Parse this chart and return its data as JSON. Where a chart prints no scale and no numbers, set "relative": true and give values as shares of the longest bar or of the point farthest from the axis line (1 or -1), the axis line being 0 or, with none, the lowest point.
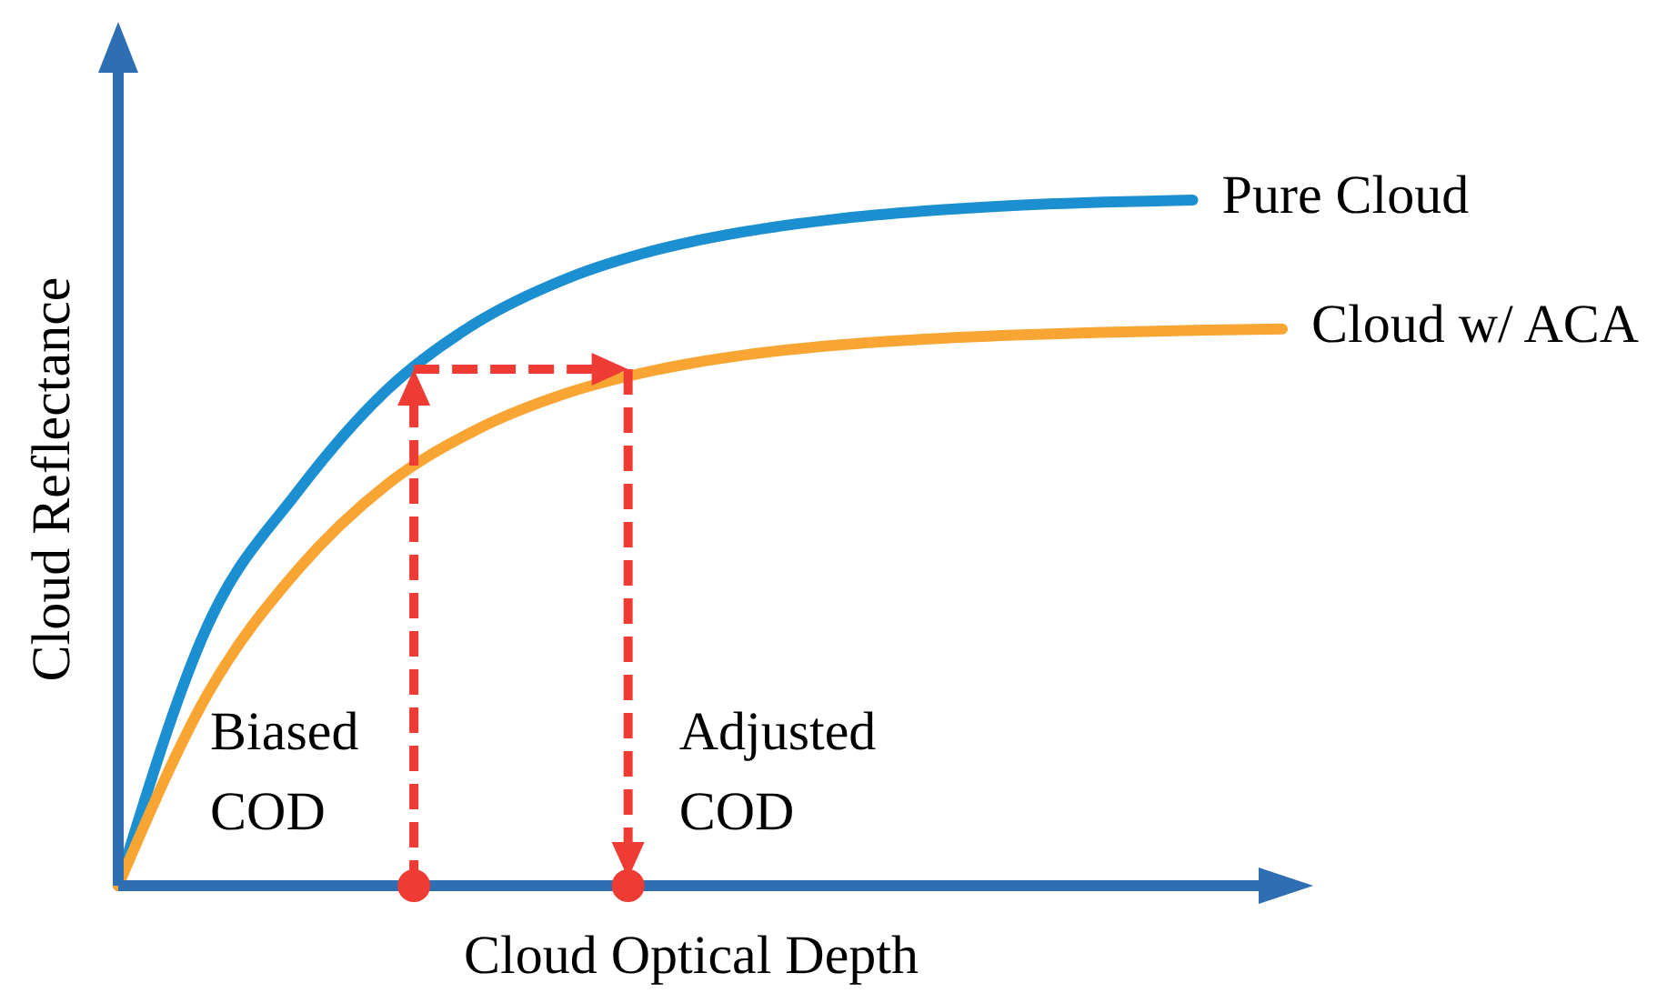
{
  "chart_data": {
    "type": "line",
    "relative": true,
    "xlabel": "Cloud Optical Depth",
    "ylabel": "Cloud Reflectance",
    "categories": [
      null,
      null,
      null,
      null,
      null,
      null,
      null,
      null,
      null,
      null,
      null,
      null,
      null,
      null
    ],
    "series": [
      {
        "name": "Pure Cloud",
        "color": "#1b8fd0",
        "values": [
          0,
          0.38,
          0.574,
          0.723,
          0.821,
          0.885,
          0.927,
          0.954,
          0.972,
          0.984,
          0.992,
          0.997,
          1,
          null
        ]
      },
      {
        "name": "Cloud w/ ACA",
        "color": "#f9a533",
        "values": [
          0,
          0.28,
          0.46,
          0.585,
          0.665,
          0.718,
          0.752,
          0.774,
          0.788,
          0.797,
          0.803,
          0.807,
          0.81,
          0.812
        ]
      }
    ],
    "annotations": [
      "Biased COD",
      "Adjusted COD"
    ],
    "marker": "none",
    "line_style": "solid",
    "grid": false,
    "legend": false
  }
}
